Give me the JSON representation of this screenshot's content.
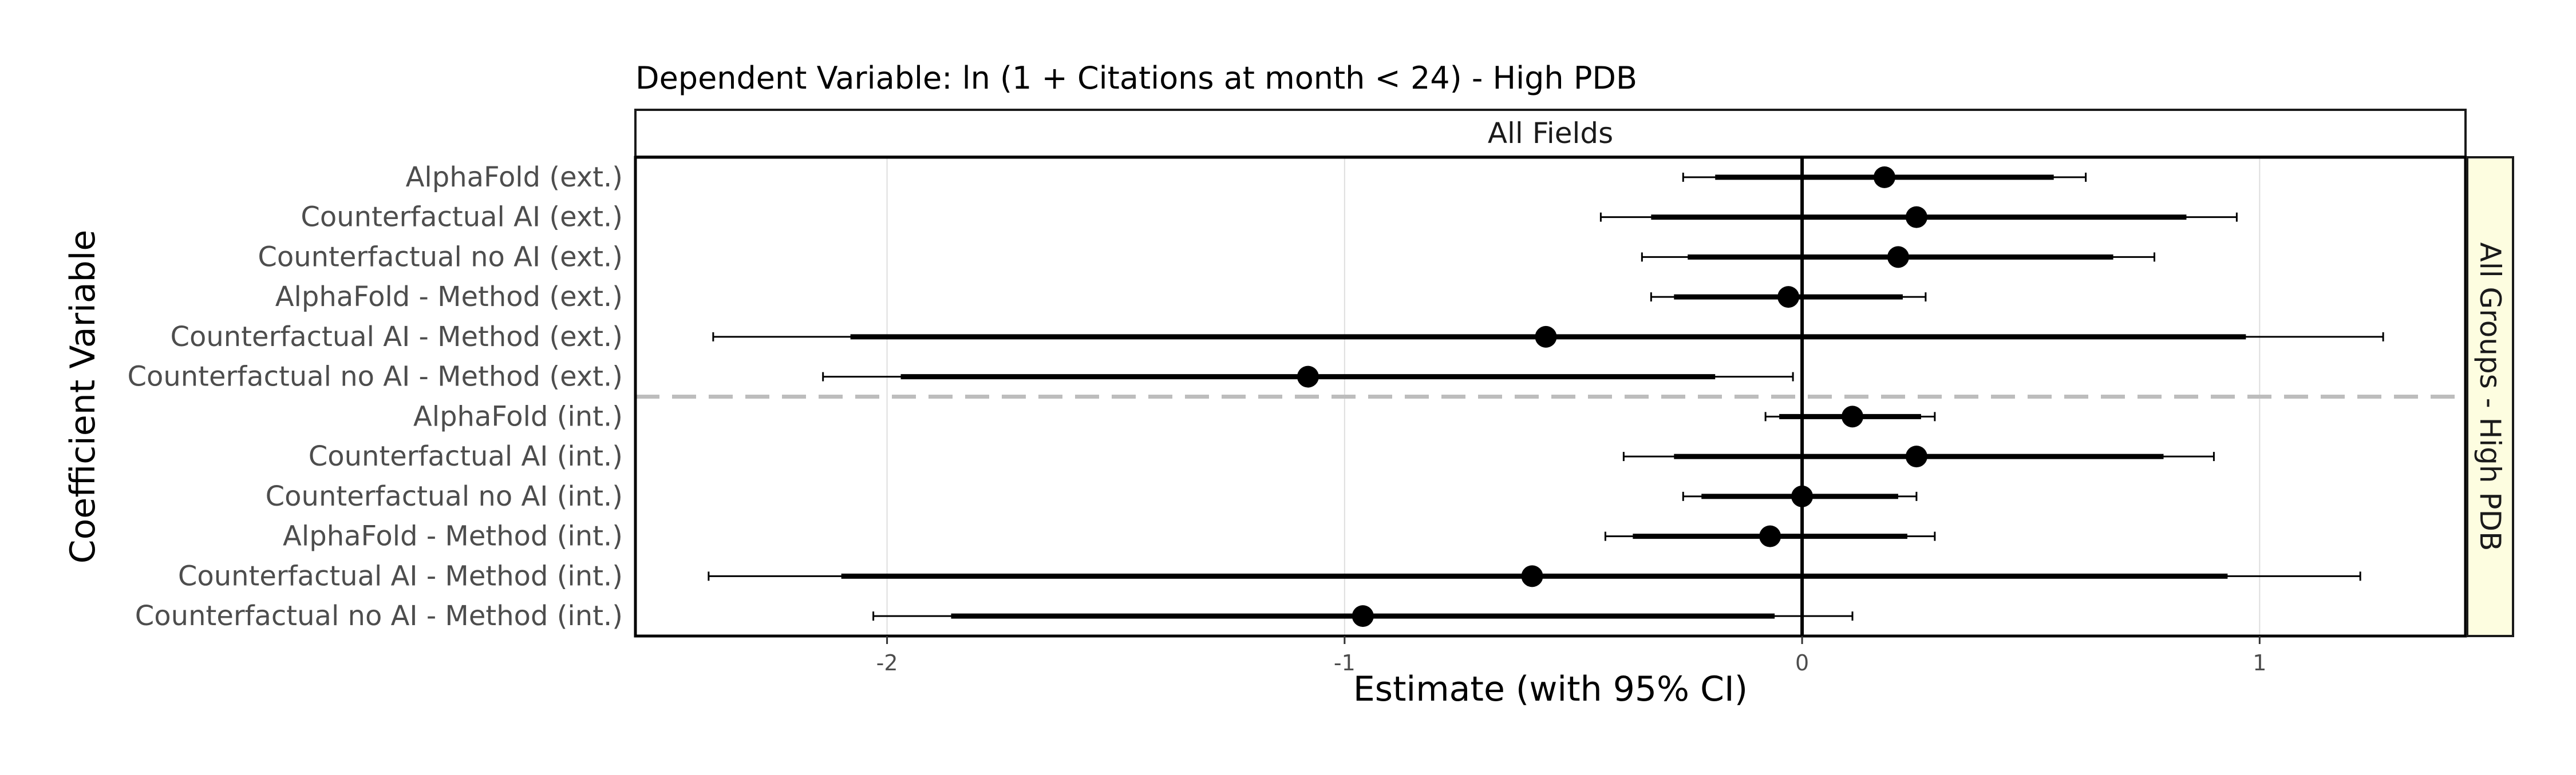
{
  "chart_data": {
    "type": "coefficient-plot",
    "title": "Dependent Variable: ln (1 + Citations at month < 24)  -  High PDB",
    "facet_top": "All Fields",
    "facet_right": "All Groups - High PDB",
    "xlabel": "Estimate (with 95% CI)",
    "ylabel": "Coefficient Variable",
    "xlim": [
      -2.55,
      1.45
    ],
    "xticks": [
      -2,
      -1,
      0,
      1
    ],
    "xtick_labels": [
      "-2",
      "-1",
      "0",
      "1"
    ],
    "vline": 0,
    "separator_between": [
      "Counterfactual no AI - Method (ext.)",
      "AlphaFold (int.)"
    ],
    "grid": "vertical-major",
    "rows": [
      {
        "label": "AlphaFold (ext.)",
        "estimate": 0.18,
        "ci90": [
          -0.19,
          0.55
        ],
        "ci95": [
          -0.26,
          0.62
        ]
      },
      {
        "label": "Counterfactual AI (ext.)",
        "estimate": 0.25,
        "ci90": [
          -0.33,
          0.84
        ],
        "ci95": [
          -0.44,
          0.95
        ]
      },
      {
        "label": "Counterfactual no AI (ext.)",
        "estimate": 0.21,
        "ci90": [
          -0.25,
          0.68
        ],
        "ci95": [
          -0.35,
          0.77
        ]
      },
      {
        "label": "AlphaFold - Method (ext.)",
        "estimate": -0.03,
        "ci90": [
          -0.28,
          0.22
        ],
        "ci95": [
          -0.33,
          0.27
        ]
      },
      {
        "label": "Counterfactual AI - Method (ext.)",
        "estimate": -0.56,
        "ci90": [
          -2.08,
          0.97
        ],
        "ci95": [
          -2.38,
          1.27
        ]
      },
      {
        "label": "Counterfactual no AI - Method (ext.)",
        "estimate": -1.08,
        "ci90": [
          -1.97,
          -0.19
        ],
        "ci95": [
          -2.14,
          -0.02
        ]
      },
      {
        "label": "AlphaFold (int.)",
        "estimate": 0.11,
        "ci90": [
          -0.05,
          0.26
        ],
        "ci95": [
          -0.08,
          0.29
        ]
      },
      {
        "label": "Counterfactual AI (int.)",
        "estimate": 0.25,
        "ci90": [
          -0.28,
          0.79
        ],
        "ci95": [
          -0.39,
          0.9
        ]
      },
      {
        "label": "Counterfactual no AI (int.)",
        "estimate": 0.0,
        "ci90": [
          -0.22,
          0.21
        ],
        "ci95": [
          -0.26,
          0.25
        ]
      },
      {
        "label": "AlphaFold - Method (int.)",
        "estimate": -0.07,
        "ci90": [
          -0.37,
          0.23
        ],
        "ci95": [
          -0.43,
          0.29
        ]
      },
      {
        "label": "Counterfactual AI - Method (int.)",
        "estimate": -0.59,
        "ci90": [
          -2.1,
          0.93
        ],
        "ci95": [
          -2.39,
          1.22
        ]
      },
      {
        "label": "Counterfactual no AI - Method (int.)",
        "estimate": -0.96,
        "ci90": [
          -1.86,
          -0.06
        ],
        "ci95": [
          -2.03,
          0.11
        ]
      }
    ],
    "colors": {
      "point": "#000000",
      "ci": "#000000",
      "separator": "#bdbdbd",
      "grid": "#dedede",
      "strip_right_fill": "#fdfde0",
      "strip_top_fill": "#ffffff"
    }
  }
}
